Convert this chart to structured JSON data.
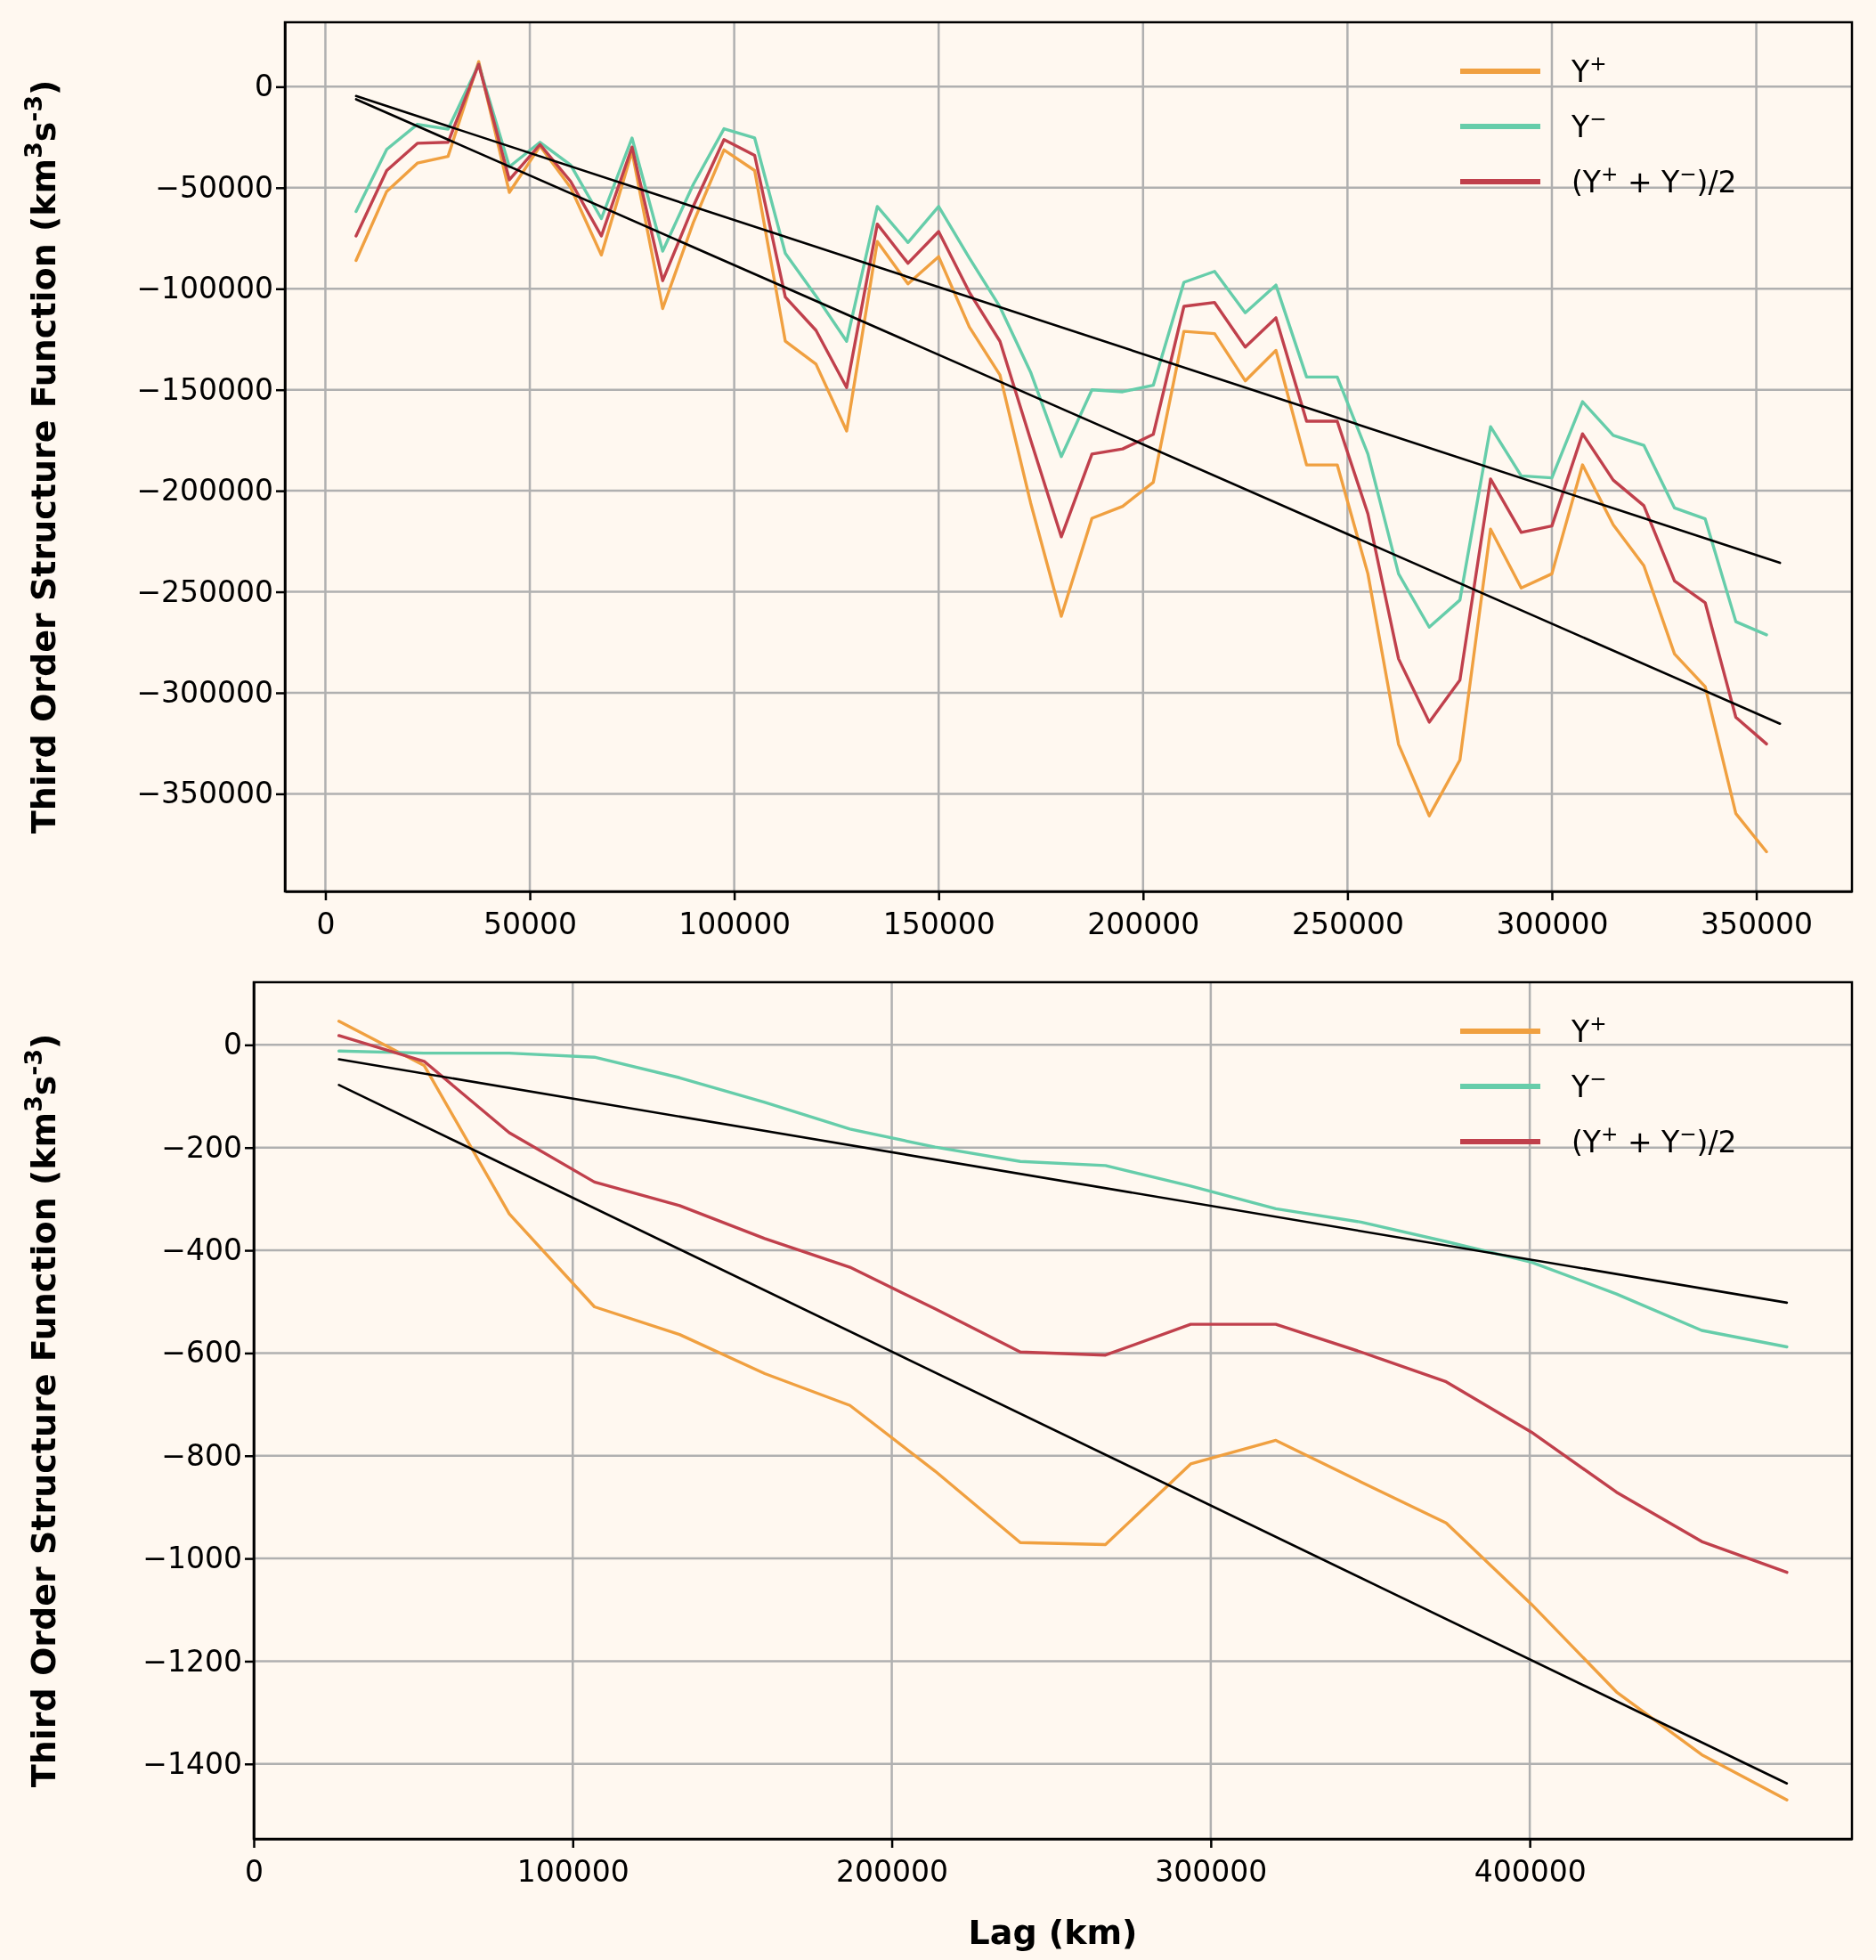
{
  "chart_data": [
    {
      "type": "line",
      "ylabel": "Third Order Structure Function (km$^{3}$s$^{-3}$)",
      "x": [
        7500,
        15000,
        22500,
        30000,
        37500,
        45000,
        52500,
        60000,
        67500,
        75000,
        82500,
        90000,
        97500,
        105000,
        112500,
        120000,
        127500,
        135000,
        142500,
        150000,
        157500,
        165000,
        172500,
        180000,
        187500,
        195000,
        202500,
        210000,
        217500,
        225000,
        232500,
        240000,
        247500,
        255000,
        262500,
        270000,
        277500,
        285000,
        292500,
        300000,
        307500,
        315000,
        322500,
        330000,
        337500,
        345000,
        352500
      ],
      "xlim": [
        -9900,
        373400
      ],
      "xticks": [
        0,
        50000,
        100000,
        150000,
        200000,
        250000,
        300000,
        350000
      ],
      "ylim": [
        -398300,
        31900
      ],
      "yticks": [
        0,
        {
          "value": -50000,
          "label": "−50000"
        },
        {
          "value": -100000,
          "label": "−100000"
        },
        {
          "value": -150000,
          "label": "−150000"
        },
        {
          "value": -200000,
          "label": "−200000"
        },
        {
          "value": -250000,
          "label": "−250000"
        },
        {
          "value": -300000,
          "label": "−300000"
        },
        {
          "value": -350000,
          "label": "−350000"
        }
      ],
      "grid": true,
      "legend": "top right",
      "series": [
        {
          "name": "Y$^{+}$",
          "color": "#f0a040",
          "values": [
            -86000,
            -51800,
            -37800,
            -34500,
            12400,
            -52300,
            -29400,
            -50000,
            -83300,
            -32100,
            -109800,
            -67200,
            -31300,
            -41500,
            -126000,
            -137300,
            -170400,
            -76600,
            -97600,
            -84100,
            -118900,
            -142700,
            -206000,
            -262100,
            -213600,
            -207700,
            -195800,
            -121100,
            -122200,
            -145600,
            -130500,
            -187200,
            -187200,
            -241100,
            -325500,
            -360900,
            -333300,
            -219000,
            -248100,
            -241100,
            -187200,
            -216800,
            -237100,
            -280800,
            -297000,
            -359800,
            -378700
          ]
        },
        {
          "name": "Y$^{−}$",
          "color": "#66cdaa",
          "values": [
            -61800,
            -31000,
            -18600,
            -21000,
            11100,
            -39600,
            -27500,
            -38800,
            -65300,
            -25400,
            -81400,
            -48300,
            -20800,
            -25400,
            -82500,
            -103600,
            -126000,
            -59300,
            -77100,
            -59300,
            -84700,
            -109000,
            -141300,
            -183100,
            -150000,
            -151000,
            -147800,
            -96800,
            -91400,
            -111900,
            -98200,
            -143700,
            -143700,
            -181800,
            -241100,
            -267500,
            -254100,
            -168300,
            -192600,
            -193600,
            -155900,
            -172600,
            -177500,
            -208500,
            -213900,
            -264800,
            -271300
          ]
        },
        {
          "name": "(Y$^{+}$ + Y$^{−}$)/2",
          "color": "#c0404c",
          "values": [
            -73900,
            -41500,
            -28000,
            -27500,
            11100,
            -46100,
            -28600,
            -46900,
            -73900,
            -29900,
            -96000,
            -59100,
            -26200,
            -34000,
            -104100,
            -120600,
            -148900,
            -68000,
            -87400,
            -71700,
            -101700,
            -126000,
            -174800,
            -222800,
            -181800,
            -179300,
            -172100,
            -108700,
            -106800,
            -128900,
            -114400,
            -165600,
            -165600,
            -211400,
            -283200,
            -314500,
            -293700,
            -194200,
            -220600,
            -217400,
            -171800,
            -194700,
            -207400,
            -244600,
            -255400,
            -312100,
            -325300
          ]
        },
        {
          "type": "line",
          "color": "#000000",
          "x": [
            7500,
            355800
          ],
          "values": [
            -4600,
            -235700
          ]
        },
        {
          "type": "line",
          "color": "#000000",
          "x": [
            7500,
            355800
          ],
          "values": [
            -6200,
            -315300
          ]
        }
      ]
    },
    {
      "type": "line",
      "xlabel": "Lag (km)",
      "ylabel": "Third Order Structure Function (km$^{3}$s$^{-3}$)",
      "x": [
        26700,
        53400,
        80100,
        106800,
        133500,
        160200,
        186900,
        213600,
        240300,
        267000,
        293700,
        320400,
        347100,
        373800,
        400500,
        427200,
        453900,
        480600
      ],
      "xlim": [
        0,
        501000
      ],
      "xticks": [
        0,
        100000,
        200000,
        300000,
        400000
      ],
      "ylim": [
        -1546,
        122
      ],
      "yticks": [
        0,
        {
          "value": -200,
          "label": "−200"
        },
        {
          "value": -400,
          "label": "−400"
        },
        {
          "value": -600,
          "label": "−600"
        },
        {
          "value": -800,
          "label": "−800"
        },
        {
          "value": -1000,
          "label": "−1000"
        },
        {
          "value": -1200,
          "label": "−1200"
        },
        {
          "value": -1400,
          "label": "−1400"
        }
      ],
      "grid": true,
      "legend": "top right",
      "series": [
        {
          "name": "Y$^{+}$",
          "color": "#f0a040",
          "values": [
            46,
            -40,
            -329,
            -510,
            -564,
            -640,
            -702,
            -830,
            -969,
            -973,
            -816,
            -770,
            -851,
            -931,
            -1089,
            -1260,
            -1382,
            -1470
          ]
        },
        {
          "name": "Y$^{−}$",
          "color": "#66cdaa",
          "values": [
            -12,
            -16,
            -16,
            -24,
            -64,
            -112,
            -164,
            -199,
            -227,
            -235,
            -275,
            -319,
            -345,
            -383,
            -423,
            -485,
            -556,
            -588
          ]
        },
        {
          "name": "(Y$^{+}$ + Y$^{−}$)/2",
          "color": "#c0404c",
          "values": [
            18,
            -32,
            -171,
            -267,
            -313,
            -377,
            -433,
            -514,
            -598,
            -604,
            -544,
            -544,
            -598,
            -656,
            -754,
            -871,
            -967,
            -1027
          ]
        },
        {
          "type": "line",
          "color": "#000000",
          "x": [
            26700,
            480600
          ],
          "values": [
            -28,
            -502
          ]
        },
        {
          "type": "line",
          "color": "#000000",
          "x": [
            26700,
            480600
          ],
          "values": [
            -78,
            -1438
          ]
        }
      ]
    }
  ]
}
